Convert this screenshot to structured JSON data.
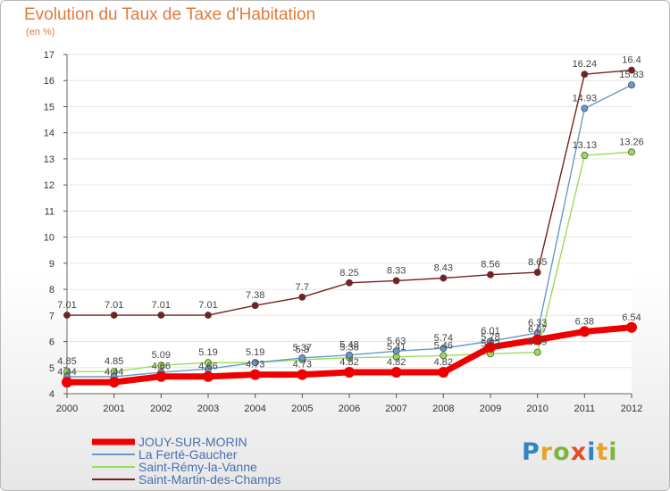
{
  "title": "Evolution du Taux de Taxe d'Habitation",
  "subtitle": "(en %)",
  "logo_text": "Proxiti",
  "chart_data": {
    "type": "line",
    "x": [
      2000,
      2001,
      2002,
      2003,
      2004,
      2005,
      2006,
      2007,
      2008,
      2009,
      2010,
      2011,
      2012
    ],
    "ylim": [
      4,
      17
    ],
    "yticks": [
      4,
      5,
      6,
      7,
      8,
      9,
      10,
      11,
      12,
      13,
      14,
      15,
      16,
      17
    ],
    "grid": "horizontal",
    "legend_position": "bottom-left",
    "series": [
      {
        "name": "JOUY-SUR-MORIN",
        "color": "#ee0000",
        "values": [
          4.44,
          4.44,
          4.66,
          4.66,
          4.73,
          4.73,
          4.82,
          4.82,
          4.82,
          5.78,
          6.07,
          6.38,
          6.54
        ],
        "labels": [
          "4.44",
          "4.44",
          "4.66",
          "4.66",
          "4.73",
          "4.73",
          "4.82",
          "4.82",
          "4.82",
          "5.78",
          "6.07",
          "6.38",
          "6.54"
        ]
      },
      {
        "name": "La Ferté-Gaucher",
        "color": "#6699cc",
        "values": [
          4.65,
          4.65,
          4.82,
          4.95,
          5.19,
          5.37,
          5.48,
          5.63,
          5.74,
          6.01,
          6.33,
          14.93,
          15.83
        ],
        "labels": [
          "",
          "",
          "",
          "",
          "5.19",
          "5.37",
          "5.48",
          "5.63",
          "5.74",
          "6.01",
          "6.33",
          "14.93",
          "15.83"
        ]
      },
      {
        "name": "Saint-Rémy-la-Vanne",
        "color": "#99dd55",
        "values": [
          4.85,
          4.85,
          5.09,
          5.19,
          5.19,
          5.3,
          5.38,
          5.41,
          5.46,
          5.53,
          5.59,
          13.13,
          13.26
        ],
        "labels": [
          "4.85",
          "4.85",
          "5.09",
          "5.19",
          "",
          "5.3",
          "5.38",
          "5.41",
          "5.46",
          "5.53",
          "5.59",
          "13.13",
          "13.26"
        ]
      },
      {
        "name": "Saint-Martin-des-Champs",
        "color": "#7a1f1f",
        "values": [
          7.01,
          7.01,
          7.01,
          7.01,
          7.38,
          7.7,
          8.25,
          8.33,
          8.43,
          8.56,
          8.65,
          16.24,
          16.4
        ],
        "labels": [
          "7.01",
          "7.01",
          "7.01",
          "7.01",
          "7.38",
          "7.7",
          "8.25",
          "8.33",
          "8.43",
          "8.56",
          "8.65",
          "16.24",
          "16.4"
        ]
      }
    ]
  }
}
